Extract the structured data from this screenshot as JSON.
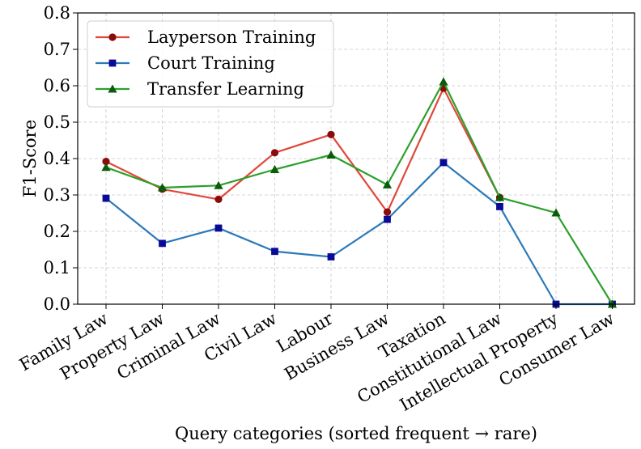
{
  "chart_data": {
    "type": "line",
    "title": "",
    "xlabel": "Query categories (sorted frequent → rare)",
    "ylabel": "F1-Score",
    "ylim": [
      0,
      0.8
    ],
    "yticks": [
      "0.0",
      "0.1",
      "0.2",
      "0.3",
      "0.4",
      "0.5",
      "0.6",
      "0.7",
      "0.8"
    ],
    "grid": true,
    "legend_position": "top-left",
    "categories": [
      "Family Law",
      "Property Law",
      "Criminal Law",
      "Civil Law",
      "Labour",
      "Business Law",
      "Taxation",
      "Constitutional Law",
      "Intellectual Property",
      "Consumer Law"
    ],
    "series": [
      {
        "name": "Layperson Training",
        "color": "#e0473a",
        "marker_color": "#8b0a0a",
        "marker": "circle",
        "values": [
          0.392,
          0.316,
          0.288,
          0.416,
          0.466,
          0.253,
          0.593,
          0.293,
          null,
          null
        ]
      },
      {
        "name": "Court Training",
        "color": "#2b79b9",
        "marker_color": "#0a0a96",
        "marker": "square",
        "values": [
          0.291,
          0.167,
          0.209,
          0.145,
          0.13,
          0.233,
          0.389,
          0.268,
          0.0,
          0.0
        ]
      },
      {
        "name": "Transfer Learning",
        "color": "#2ca02c",
        "marker_color": "#0a5c0a",
        "marker": "triangle",
        "values": [
          0.376,
          0.32,
          0.326,
          0.37,
          0.41,
          0.328,
          0.611,
          0.293,
          0.251,
          0.0
        ]
      }
    ]
  }
}
